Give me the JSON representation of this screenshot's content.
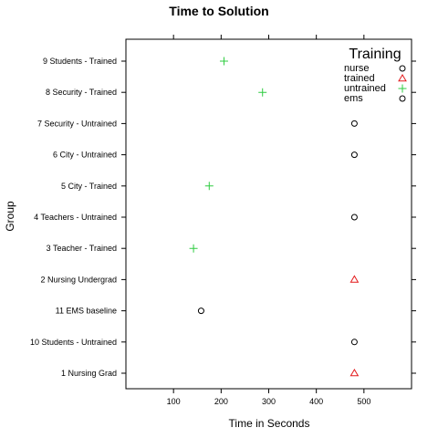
{
  "chart_data": {
    "type": "scatter",
    "title": "Time to Solution",
    "xlabel": "Time in Seconds",
    "ylabel": "Group",
    "xlim": [
      0,
      600
    ],
    "xticks": [
      100,
      200,
      300,
      400,
      500
    ],
    "grid": false,
    "legend": {
      "title": "Training",
      "placement": "top-right",
      "entries": [
        {
          "name": "nurse",
          "symbol": "circle",
          "color": "#000000"
        },
        {
          "name": "trained",
          "symbol": "triangle",
          "color": "#e41a1c"
        },
        {
          "name": "untrained",
          "symbol": "plus",
          "color": "#2ecc40"
        },
        {
          "name": "ems",
          "symbol": "circle",
          "color": "#000000"
        }
      ]
    },
    "categories": [
      "1 Nursing Grad",
      "10 Students - Untrained",
      "11  EMS baseline",
      "2 Nursing Undergrad",
      "3 Teacher - Trained",
      "4 Teachers - Untrained",
      "5 City - Trained",
      "6 City - Untrained",
      "7 Security - Untrained",
      "8 Security - Trained",
      "9 Students - Trained"
    ],
    "points": [
      {
        "category": "1 Nursing Grad",
        "x": 480,
        "symbol": "triangle",
        "color": "#e41a1c"
      },
      {
        "category": "10 Students - Untrained",
        "x": 480,
        "symbol": "circle",
        "color": "#000000"
      },
      {
        "category": "11  EMS baseline",
        "x": 158,
        "symbol": "circle",
        "color": "#000000"
      },
      {
        "category": "2 Nursing Undergrad",
        "x": 480,
        "symbol": "triangle",
        "color": "#e41a1c"
      },
      {
        "category": "3 Teacher - Trained",
        "x": 142,
        "symbol": "plus",
        "color": "#2ecc40"
      },
      {
        "category": "4 Teachers - Untrained",
        "x": 480,
        "symbol": "circle",
        "color": "#000000"
      },
      {
        "category": "5 City - Trained",
        "x": 175,
        "symbol": "plus",
        "color": "#2ecc40"
      },
      {
        "category": "6 City - Untrained",
        "x": 480,
        "symbol": "circle",
        "color": "#000000"
      },
      {
        "category": "7 Security - Untrained",
        "x": 480,
        "symbol": "circle",
        "color": "#000000"
      },
      {
        "category": "8 Security - Trained",
        "x": 287,
        "symbol": "plus",
        "color": "#2ecc40"
      },
      {
        "category": "9 Students - Trained",
        "x": 206,
        "symbol": "plus",
        "color": "#2ecc40"
      }
    ]
  }
}
